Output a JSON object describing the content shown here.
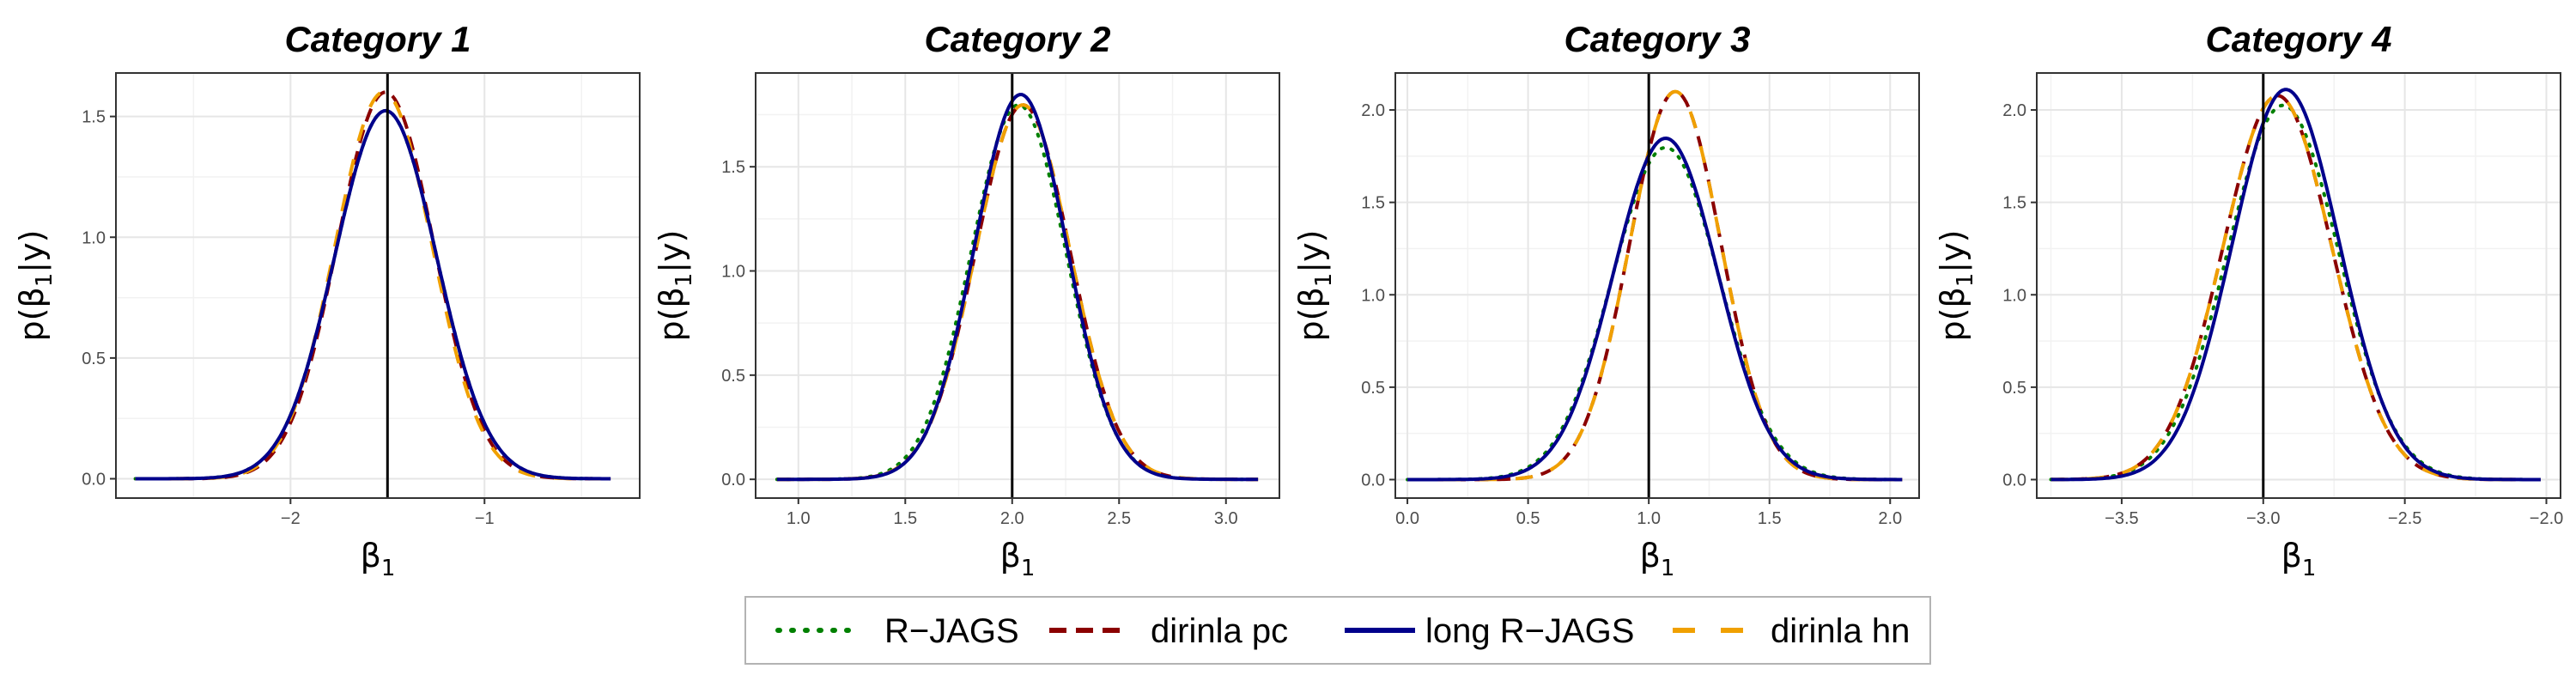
{
  "legend": {
    "placement": "bottom",
    "entries": [
      {
        "label": "R−JAGS",
        "color": "#008000",
        "dash": "dotted"
      },
      {
        "label": "dirinla pc",
        "color": "#8b0000",
        "dash": "dashed"
      },
      {
        "label": "long R−JAGS",
        "color": "#00008b",
        "dash": "solid"
      },
      {
        "label": "dirinla hn",
        "color": "#f0a000",
        "dash": "dashed-long"
      }
    ]
  },
  "chart_data": [
    {
      "type": "line",
      "title": "Category 1",
      "xlabel": "β1",
      "ylabel": "p(β1|y)",
      "xlim": [
        -2.9,
        -0.2
      ],
      "ylim": [
        -0.08,
        1.68
      ],
      "xticks": [
        -2,
        -1
      ],
      "xtick_labels": [
        "−2",
        "−1"
      ],
      "yticks": [
        0,
        0.5,
        1,
        1.5
      ],
      "ytick_labels": [
        "0.0",
        "0.5",
        "1.0",
        "1.5"
      ],
      "true_value": -1.5,
      "grid": true,
      "series": [
        {
          "name": "R−JAGS",
          "mean": -1.52,
          "sd": 0.262,
          "skew": 0.05,
          "x_range": [
            -2.8,
            -0.35
          ]
        },
        {
          "name": "dirinla pc",
          "mean": -1.53,
          "sd": 0.25,
          "skew": 0.1,
          "x_range": [
            -2.8,
            -0.35
          ]
        },
        {
          "name": "long R−JAGS",
          "mean": -1.52,
          "sd": 0.262,
          "skew": 0.05,
          "x_range": [
            -2.8,
            -0.35
          ]
        },
        {
          "name": "dirinla hn",
          "mean": -1.54,
          "sd": 0.25,
          "skew": 0.1,
          "x_range": [
            -2.8,
            -0.35
          ]
        }
      ]
    },
    {
      "type": "line",
      "title": "Category 2",
      "xlabel": "β1",
      "ylabel": "p(β1|y)",
      "xlim": [
        0.8,
        3.25
      ],
      "ylim": [
        -0.09,
        1.95
      ],
      "xticks": [
        1,
        1.5,
        2,
        2.5,
        3
      ],
      "xtick_labels": [
        "1.0",
        "1.5",
        "2.0",
        "2.5",
        "3.0"
      ],
      "yticks": [
        0,
        0.5,
        1,
        1.5
      ],
      "ytick_labels": [
        "0.0",
        "0.5",
        "1.0",
        "1.5"
      ],
      "true_value": 2,
      "grid": true,
      "series": [
        {
          "name": "R−JAGS",
          "mean": 2.03,
          "sd": 0.222,
          "skew": 0,
          "x_range": [
            0.9,
            3.15
          ]
        },
        {
          "name": "dirinla pc",
          "mean": 2.05,
          "sd": 0.222,
          "skew": 0,
          "x_range": [
            0.9,
            3.15
          ]
        },
        {
          "name": "long R−JAGS",
          "mean": 2.04,
          "sd": 0.216,
          "skew": 0,
          "x_range": [
            0.9,
            3.15
          ]
        },
        {
          "name": "dirinla hn",
          "mean": 2.05,
          "sd": 0.222,
          "skew": 0,
          "x_range": [
            0.9,
            3.15
          ]
        }
      ]
    },
    {
      "type": "line",
      "title": "Category 3",
      "xlabel": "β1",
      "ylabel": "p(β1|y)",
      "xlim": [
        -0.05,
        2.12
      ],
      "ylim": [
        -0.1,
        2.2
      ],
      "xticks": [
        0,
        0.5,
        1,
        1.5,
        2
      ],
      "xtick_labels": [
        "0.0",
        "0.5",
        "1.0",
        "1.5",
        "2.0"
      ],
      "yticks": [
        0,
        0.5,
        1,
        1.5,
        2
      ],
      "ytick_labels": [
        "0.0",
        "0.5",
        "1.0",
        "1.5",
        "2.0"
      ],
      "true_value": 1,
      "grid": true,
      "series": [
        {
          "name": "R−JAGS",
          "mean": 1.07,
          "sd": 0.222,
          "skew": 0,
          "x_range": [
            0.0,
            2.05
          ]
        },
        {
          "name": "dirinla pc",
          "mean": 1.11,
          "sd": 0.19,
          "skew": 0,
          "x_range": [
            0.0,
            2.05
          ]
        },
        {
          "name": "long R−JAGS",
          "mean": 1.07,
          "sd": 0.216,
          "skew": 0,
          "x_range": [
            0.0,
            2.05
          ]
        },
        {
          "name": "dirinla hn",
          "mean": 1.11,
          "sd": 0.19,
          "skew": 0,
          "x_range": [
            0.0,
            2.05
          ]
        }
      ]
    },
    {
      "type": "line",
      "title": "Category 4",
      "xlabel": "β1",
      "ylabel": "p(β1|y)",
      "xlim": [
        -3.8,
        -1.95
      ],
      "ylim": [
        -0.1,
        2.2
      ],
      "xticks": [
        -3.5,
        -3,
        -2.5,
        -2
      ],
      "xtick_labels": [
        "−3.5",
        "−3.0",
        "−2.5",
        "−2.0"
      ],
      "yticks": [
        0,
        0.5,
        1,
        1.5,
        2
      ],
      "ytick_labels": [
        "0.0",
        "0.5",
        "1.0",
        "1.5",
        "2.0"
      ],
      "true_value": -3,
      "grid": true,
      "series": [
        {
          "name": "R−JAGS",
          "mean": -2.93,
          "sd": 0.197,
          "skew": 0,
          "x_range": [
            -3.75,
            -2.02
          ]
        },
        {
          "name": "dirinla pc",
          "mean": -2.95,
          "sd": 0.192,
          "skew": 0,
          "x_range": [
            -3.75,
            -2.02
          ]
        },
        {
          "name": "long R−JAGS",
          "mean": -2.92,
          "sd": 0.189,
          "skew": 0,
          "x_range": [
            -3.75,
            -2.02
          ]
        },
        {
          "name": "dirinla hn",
          "mean": -2.95,
          "sd": 0.192,
          "skew": 0,
          "x_range": [
            -3.75,
            -2.02
          ]
        }
      ]
    }
  ]
}
